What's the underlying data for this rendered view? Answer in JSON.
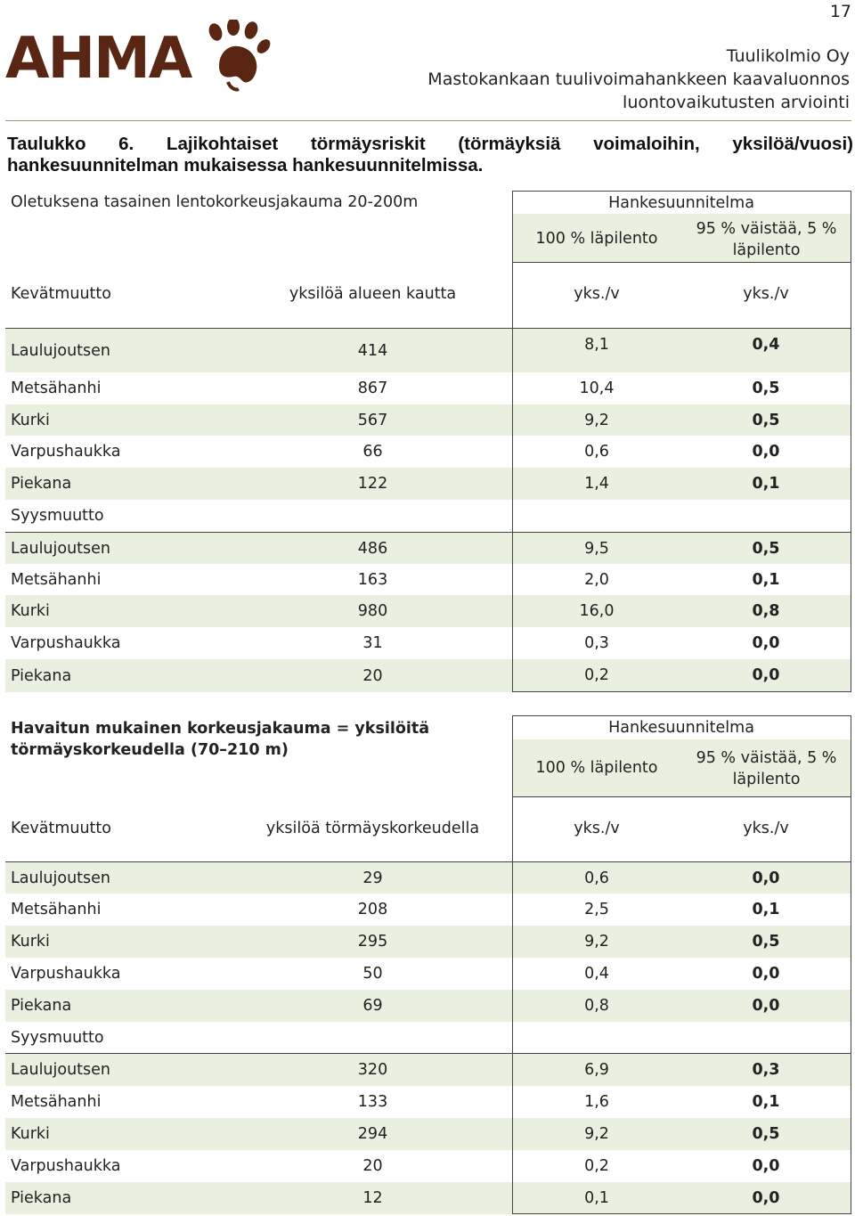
{
  "page_number": "17",
  "logo": {
    "text": "AHMA",
    "icon": "paw-print-icon",
    "color": "#5a2614"
  },
  "header": {
    "company": "Tuulikolmio Oy",
    "project": "Mastokankaan tuulivoimahankkeen kaavaluonnos",
    "report": "luontovaikutusten arviointi"
  },
  "caption": {
    "label": "Taulukko",
    "number": "6.",
    "w1": "Lajikohtaiset",
    "w2": "törmäysriskit",
    "w3": "(törmäyksiä",
    "w4": "voimaloihin,",
    "w5": "yksilöä/vuosi)",
    "line2": "hankesuunnitelman mukaisessa hankesuunnitelmissa."
  },
  "table1": {
    "title": "Oletuksena tasainen lentokorkeusjakauma 20-200m",
    "plan_header": "Hankesuunnitelma",
    "col_a": "100 % läpilento",
    "col_b": "95 % väistää, 5 % läpilento",
    "season_spring": "Kevätmuutto",
    "count_header": "yksilöä alueen kautta",
    "unit_a": "yks./v",
    "unit_b": "yks./v",
    "spring": [
      {
        "species": "Laulujoutsen",
        "count": "414",
        "a": "8,1",
        "b": "0,4"
      },
      {
        "species": "Metsähanhi",
        "count": "867",
        "a": "10,4",
        "b": "0,5"
      },
      {
        "species": "Kurki",
        "count": "567",
        "a": "9,2",
        "b": "0,5"
      },
      {
        "species": "Varpushaukka",
        "count": "66",
        "a": "0,6",
        "b": "0,0"
      },
      {
        "species": "Piekana",
        "count": "122",
        "a": "1,4",
        "b": "0,1"
      }
    ],
    "season_autumn": "Syysmuutto",
    "autumn": [
      {
        "species": "Laulujoutsen",
        "count": "486",
        "a": "9,5",
        "b": "0,5"
      },
      {
        "species": "Metsähanhi",
        "count": "163",
        "a": "2,0",
        "b": "0,1"
      },
      {
        "species": "Kurki",
        "count": "980",
        "a": "16,0",
        "b": "0,8"
      },
      {
        "species": "Varpushaukka",
        "count": "31",
        "a": "0,3",
        "b": "0,0"
      },
      {
        "species": "Piekana",
        "count": "20",
        "a": "0,2",
        "b": "0,0"
      }
    ]
  },
  "table2": {
    "title_l1": "Havaitun mukainen korkeusjakauma = yksilöitä",
    "title_l2": "törmäyskorkeudella (70–210 m)",
    "plan_header": "Hankesuunnitelma",
    "col_a": "100 % läpilento",
    "col_b": "95 % väistää, 5 % läpilento",
    "season_spring": "Kevätmuutto",
    "count_header": "yksilöä törmäyskorkeudella",
    "unit_a": "yks./v",
    "unit_b": "yks./v",
    "spring": [
      {
        "species": "Laulujoutsen",
        "count": "29",
        "a": "0,6",
        "b": "0,0"
      },
      {
        "species": "Metsähanhi",
        "count": "208",
        "a": "2,5",
        "b": "0,1"
      },
      {
        "species": "Kurki",
        "count": "295",
        "a": "9,2",
        "b": "0,5"
      },
      {
        "species": "Varpushaukka",
        "count": "50",
        "a": "0,4",
        "b": "0,0"
      },
      {
        "species": "Piekana",
        "count": "69",
        "a": "0,8",
        "b": "0,0"
      }
    ],
    "season_autumn": "Syysmuutto",
    "autumn": [
      {
        "species": "Laulujoutsen",
        "count": "320",
        "a": "6,9",
        "b": "0,3"
      },
      {
        "species": "Metsähanhi",
        "count": "133",
        "a": "1,6",
        "b": "0,1"
      },
      {
        "species": "Kurki",
        "count": "294",
        "a": "9,2",
        "b": "0,5"
      },
      {
        "species": "Varpushaukka",
        "count": "20",
        "a": "0,2",
        "b": "0,0"
      },
      {
        "species": "Piekana",
        "count": "12",
        "a": "0,1",
        "b": "0,0"
      }
    ]
  }
}
